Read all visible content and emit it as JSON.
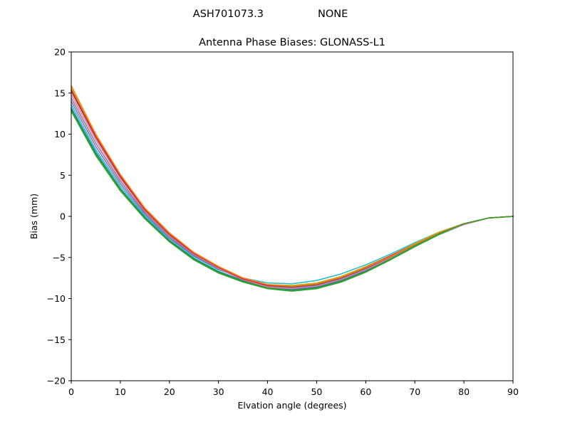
{
  "figure": {
    "suptitle_left": "ASH701073.3",
    "suptitle_right": "NONE"
  },
  "chart_data": {
    "type": "line",
    "title": "Antenna Phase Biases: GLONASS-L1",
    "xlabel": "Elvation angle (degrees)",
    "ylabel": "Bias (mm)",
    "xlim": [
      0,
      90
    ],
    "ylim": [
      -20,
      20
    ],
    "xticks": [
      0,
      10,
      20,
      30,
      40,
      50,
      60,
      70,
      80,
      90
    ],
    "yticks": [
      -20,
      -15,
      -10,
      -5,
      0,
      5,
      10,
      15,
      20
    ],
    "grid": false,
    "legend": "none",
    "x": [
      0,
      5,
      10,
      15,
      20,
      25,
      30,
      35,
      40,
      45,
      50,
      55,
      60,
      65,
      70,
      75,
      80,
      85,
      90
    ],
    "series": [
      {
        "color": "#2ca02c",
        "values": [
          12.8,
          7.4,
          3.1,
          -0.3,
          -3.1,
          -5.3,
          -6.9,
          -8.0,
          -8.8,
          -9.1,
          -8.8,
          -8.0,
          -6.8,
          -5.3,
          -3.7,
          -2.2,
          -1.0,
          -0.2,
          0.0
        ]
      },
      {
        "color": "#1f77b4",
        "values": [
          13.2,
          7.8,
          3.4,
          -0.1,
          -2.9,
          -5.1,
          -6.7,
          -7.8,
          -8.6,
          -8.9,
          -8.6,
          -7.8,
          -6.6,
          -5.1,
          -3.6,
          -2.1,
          -0.9,
          -0.2,
          0.0
        ]
      },
      {
        "color": "#17becf",
        "values": [
          13.6,
          8.1,
          3.7,
          0.1,
          -2.7,
          -4.9,
          -6.5,
          -7.5,
          -8.1,
          -8.2,
          -7.8,
          -7.0,
          -5.9,
          -4.6,
          -3.2,
          -1.9,
          -0.9,
          -0.2,
          0.0
        ]
      },
      {
        "color": "#9467bd",
        "values": [
          14.0,
          8.5,
          4.0,
          0.3,
          -2.6,
          -4.8,
          -6.4,
          -7.6,
          -8.3,
          -8.5,
          -8.2,
          -7.4,
          -6.3,
          -4.9,
          -3.4,
          -2.0,
          -0.9,
          -0.2,
          0.0
        ]
      },
      {
        "color": "#7f7f7f",
        "values": [
          14.4,
          8.9,
          4.3,
          0.5,
          -2.4,
          -4.7,
          -6.4,
          -7.7,
          -8.5,
          -8.7,
          -8.4,
          -7.6,
          -6.4,
          -5.0,
          -3.5,
          -2.1,
          -1.0,
          -0.2,
          0.0
        ]
      },
      {
        "color": "#e377c2",
        "values": [
          14.8,
          9.3,
          4.6,
          0.7,
          -2.3,
          -4.6,
          -6.3,
          -7.7,
          -8.6,
          -8.8,
          -8.5,
          -7.7,
          -6.5,
          -5.1,
          -3.6,
          -2.1,
          -1.0,
          -0.2,
          0.0
        ]
      },
      {
        "color": "#8c564b",
        "values": [
          15.2,
          9.6,
          4.8,
          0.8,
          -2.2,
          -4.5,
          -6.2,
          -7.6,
          -8.4,
          -8.6,
          -8.3,
          -7.5,
          -6.3,
          -4.9,
          -3.4,
          -2.0,
          -0.9,
          -0.2,
          0.0
        ]
      },
      {
        "color": "#bcbd22",
        "values": [
          15.6,
          9.9,
          5.0,
          0.9,
          -2.1,
          -4.4,
          -6.1,
          -7.5,
          -8.3,
          -8.4,
          -8.1,
          -7.3,
          -6.1,
          -4.8,
          -3.3,
          -1.9,
          -0.9,
          -0.2,
          0.0
        ]
      },
      {
        "color": "#d62728",
        "values": [
          15.4,
          9.7,
          4.9,
          0.8,
          -2.2,
          -4.5,
          -6.2,
          -7.6,
          -8.4,
          -8.5,
          -8.2,
          -7.4,
          -6.2,
          -4.8,
          -3.4,
          -2.0,
          -0.9,
          -0.2,
          0.0
        ]
      },
      {
        "color": "#ff7f0e",
        "values": [
          15.9,
          10.0,
          5.1,
          1.0,
          -2.0,
          -4.4,
          -6.1,
          -7.5,
          -8.3,
          -8.5,
          -8.2,
          -7.4,
          -6.2,
          -4.9,
          -3.4,
          -2.0,
          -0.9,
          -0.2,
          0.0
        ]
      },
      {
        "color": "#2ca02c",
        "values": [
          13.0,
          7.6,
          3.3,
          -0.2,
          -3.0,
          -5.2,
          -6.8,
          -7.9,
          -8.7,
          -9.0,
          -8.7,
          -7.9,
          -6.7,
          -5.2,
          -3.6,
          -2.1,
          -0.9,
          -0.2,
          0.0
        ]
      }
    ]
  }
}
